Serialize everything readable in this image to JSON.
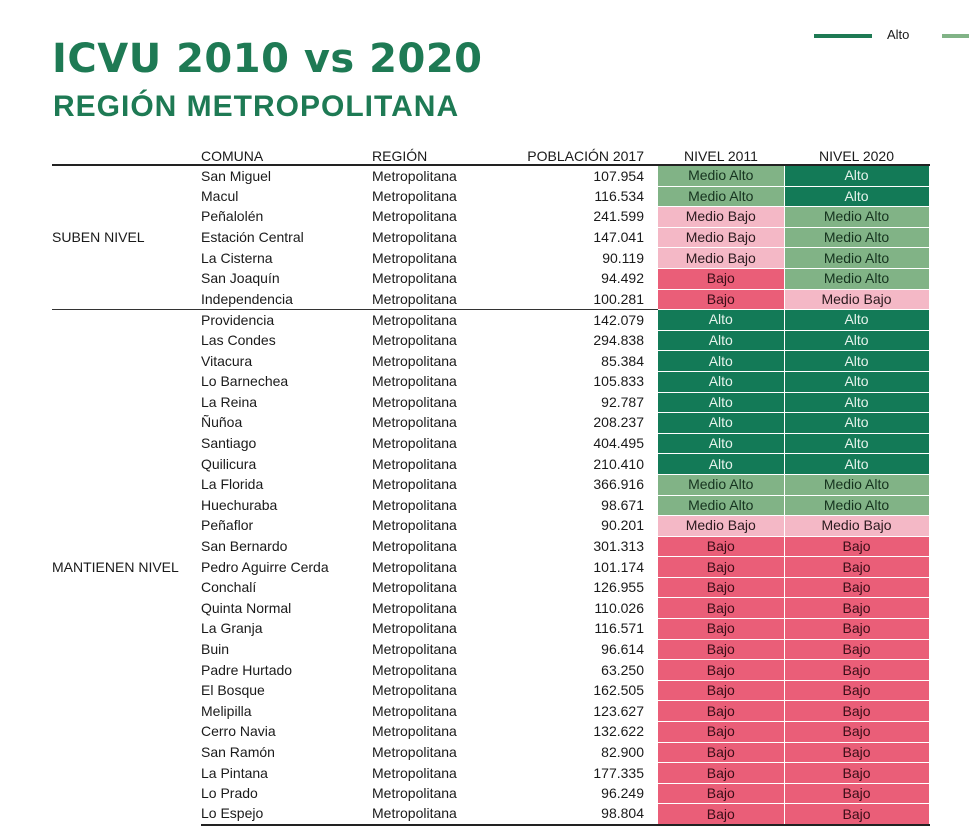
{
  "title": "ICVU 2010 vs 2020",
  "subtitle": "REGIÓN METROPOLITANA",
  "legend": {
    "label": "Alto",
    "colors": [
      "#1e7a54",
      "#81b386"
    ]
  },
  "table": {
    "headers": {
      "group": "",
      "comuna": "COMUNA",
      "region": "REGIÓN",
      "poblacion": "POBLACIÓN 2017",
      "nivel2011": "NIVEL 2011",
      "nivel2020": "NIVEL 2020"
    },
    "groups": [
      {
        "label": "SUBEN NIVEL",
        "rows": [
          [
            "San Miguel",
            "Metropolitana",
            "107.954",
            "Medio Alto",
            "Alto"
          ],
          [
            "Macul",
            "Metropolitana",
            "116.534",
            "Medio Alto",
            "Alto"
          ],
          [
            "Peñalolén",
            "Metropolitana",
            "241.599",
            "Medio Bajo",
            "Medio Alto"
          ],
          [
            "Estación Central",
            "Metropolitana",
            "147.041",
            "Medio Bajo",
            "Medio Alto"
          ],
          [
            "La Cisterna",
            "Metropolitana",
            "90.119",
            "Medio Bajo",
            "Medio Alto"
          ],
          [
            "San Joaquín",
            "Metropolitana",
            "94.492",
            "Bajo",
            "Medio Alto"
          ],
          [
            "Independencia",
            "Metropolitana",
            "100.281",
            "Bajo",
            "Medio Bajo"
          ]
        ]
      },
      {
        "label": "MANTIENEN NIVEL",
        "rows": [
          [
            "Providencia",
            "Metropolitana",
            "142.079",
            "Alto",
            "Alto"
          ],
          [
            "Las Condes",
            "Metropolitana",
            "294.838",
            "Alto",
            "Alto"
          ],
          [
            "Vitacura",
            "Metropolitana",
            "85.384",
            "Alto",
            "Alto"
          ],
          [
            "Lo Barnechea",
            "Metropolitana",
            "105.833",
            "Alto",
            "Alto"
          ],
          [
            "La Reina",
            "Metropolitana",
            "92.787",
            "Alto",
            "Alto"
          ],
          [
            "Ñuñoa",
            "Metropolitana",
            "208.237",
            "Alto",
            "Alto"
          ],
          [
            "Santiago",
            "Metropolitana",
            "404.495",
            "Alto",
            "Alto"
          ],
          [
            "Quilicura",
            "Metropolitana",
            "210.410",
            "Alto",
            "Alto"
          ],
          [
            "La Florida",
            "Metropolitana",
            "366.916",
            "Medio Alto",
            "Medio Alto"
          ],
          [
            "Huechuraba",
            "Metropolitana",
            "98.671",
            "Medio Alto",
            "Medio Alto"
          ],
          [
            "Peñaflor",
            "Metropolitana",
            "90.201",
            "Medio Bajo",
            "Medio Bajo"
          ],
          [
            "San Bernardo",
            "Metropolitana",
            "301.313",
            "Bajo",
            "Bajo"
          ],
          [
            "Pedro Aguirre Cerda",
            "Metropolitana",
            "101.174",
            "Bajo",
            "Bajo"
          ],
          [
            "Conchalí",
            "Metropolitana",
            "126.955",
            "Bajo",
            "Bajo"
          ],
          [
            "Quinta Normal",
            "Metropolitana",
            "110.026",
            "Bajo",
            "Bajo"
          ],
          [
            "La Granja",
            "Metropolitana",
            "116.571",
            "Bajo",
            "Bajo"
          ],
          [
            "Buin",
            "Metropolitana",
            "96.614",
            "Bajo",
            "Bajo"
          ],
          [
            "Padre Hurtado",
            "Metropolitana",
            "63.250",
            "Bajo",
            "Bajo"
          ],
          [
            "El Bosque",
            "Metropolitana",
            "162.505",
            "Bajo",
            "Bajo"
          ],
          [
            "Melipilla",
            "Metropolitana",
            "123.627",
            "Bajo",
            "Bajo"
          ],
          [
            "Cerro Navia",
            "Metropolitana",
            "132.622",
            "Bajo",
            "Bajo"
          ],
          [
            "San Ramón",
            "Metropolitana",
            "82.900",
            "Bajo",
            "Bajo"
          ],
          [
            "La Pintana",
            "Metropolitana",
            "177.335",
            "Bajo",
            "Bajo"
          ],
          [
            "Lo Prado",
            "Metropolitana",
            "96.249",
            "Bajo",
            "Bajo"
          ],
          [
            "Lo Espejo",
            "Metropolitana",
            "98.804",
            "Bajo",
            "Bajo"
          ]
        ]
      }
    ],
    "level_colors": {
      "Alto": "#137a57",
      "Medio Alto": "#81b386",
      "Medio Bajo": "#f4b8c6",
      "Bajo": "#ea5e78"
    }
  }
}
